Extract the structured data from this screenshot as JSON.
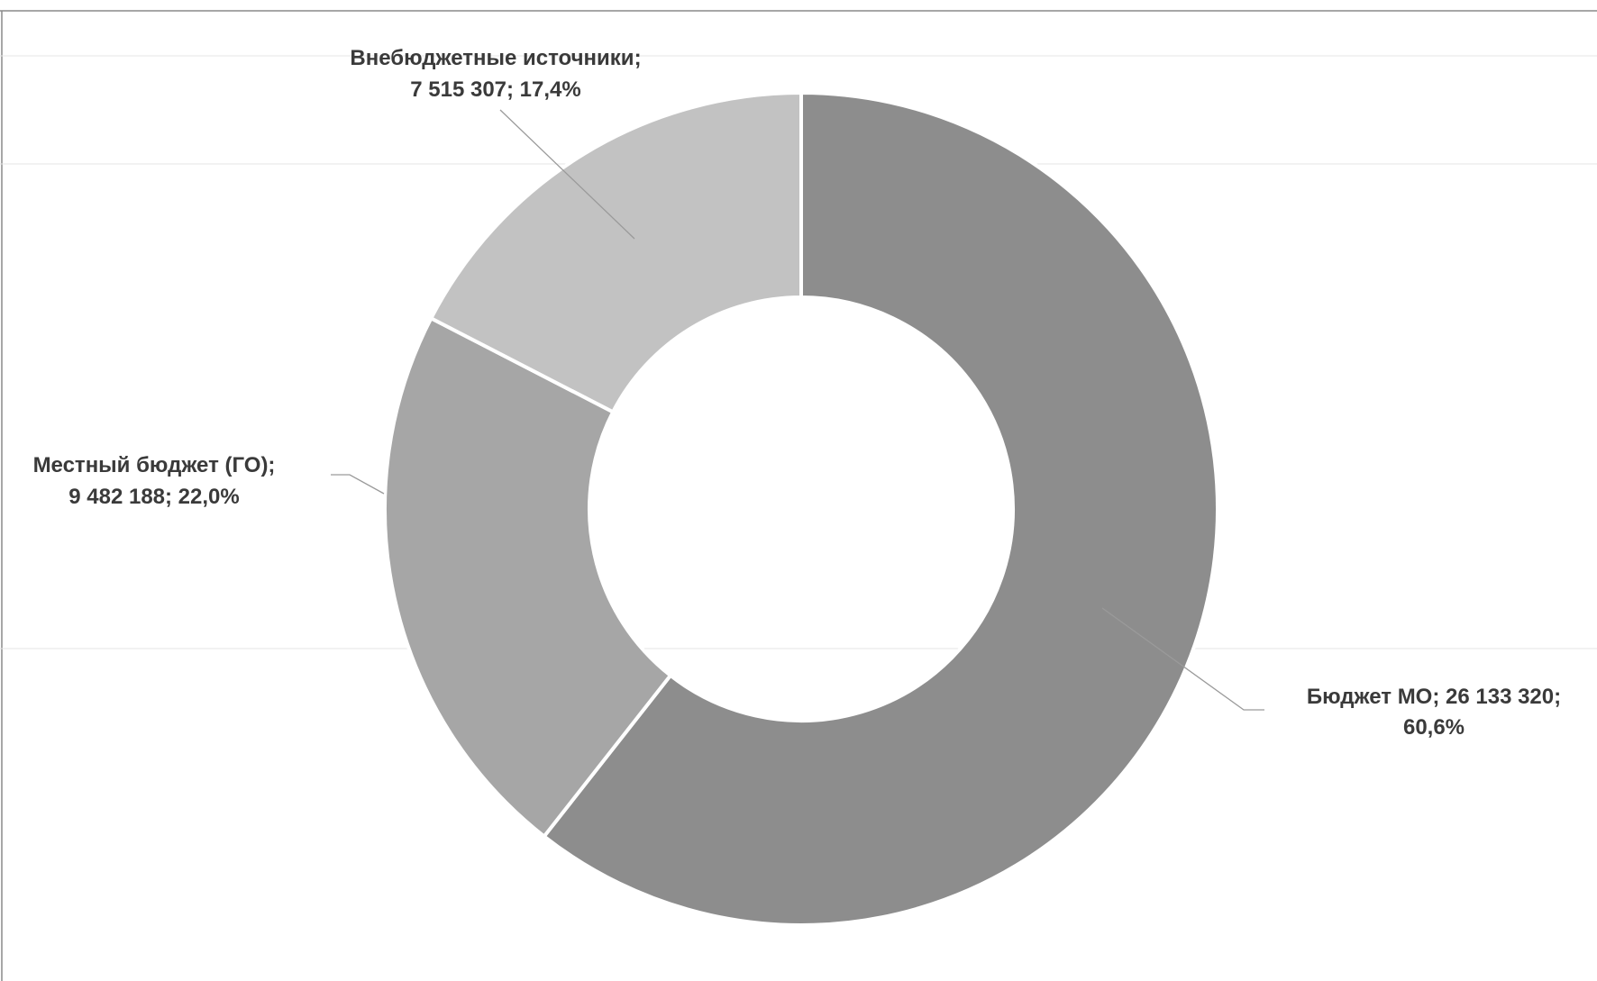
{
  "chart_data": {
    "type": "pie",
    "donut": true,
    "legend": "none",
    "grid": false,
    "slices": [
      {
        "name": "Бюджет МО",
        "value": 26133320,
        "percent": 60.6,
        "color": "#8d8d8d",
        "label_lines": [
          "Бюджет МО; 26 133 320;",
          "60,6%"
        ]
      },
      {
        "name": "Местный бюджет (ГО)",
        "value": 9482188,
        "percent": 22.0,
        "color": "#a6a6a6",
        "label_lines": [
          "Местный бюджет (ГО);",
          "9 482 188; 22,0%"
        ]
      },
      {
        "name": "Внебюджетные источники",
        "value": 7515307,
        "percent": 17.4,
        "color": "#c2c2c2",
        "label_lines": [
          "Внебюджетные источники;",
          "7 515 307; 17,4%"
        ]
      }
    ]
  }
}
